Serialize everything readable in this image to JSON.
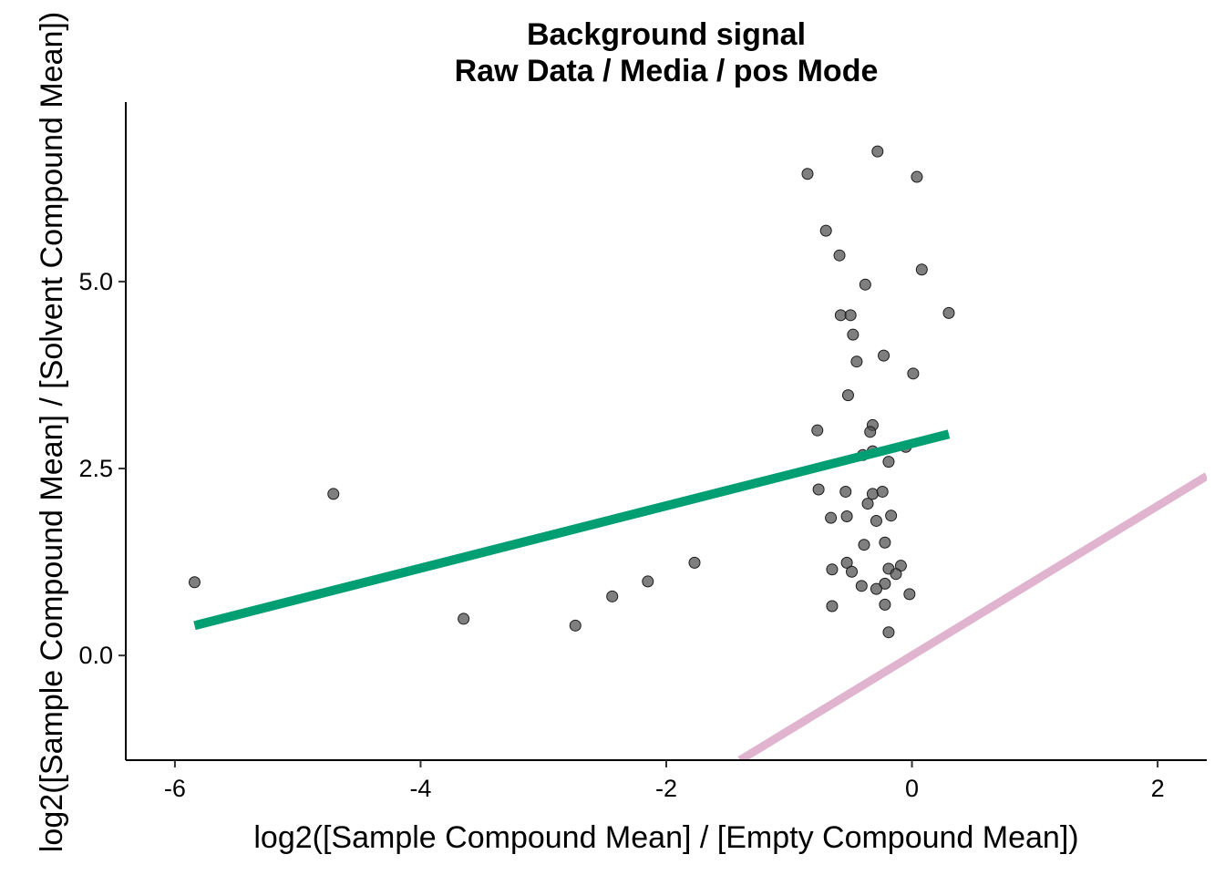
{
  "chart_data": {
    "type": "scatter",
    "title": "Background signal",
    "subtitle": "Raw Data / Media / pos Mode",
    "xlabel": "log2([Sample Compound Mean] / [Empty Compound Mean])",
    "ylabel": "log2([Sample Compound Mean] / [Solvent Compound Mean])",
    "xlim": [
      -6.4,
      2.4
    ],
    "ylim": [
      -1.4,
      7.4
    ],
    "x_ticks": [
      -6,
      -4,
      -2,
      0,
      2
    ],
    "x_tick_labels": [
      "-6",
      "-4",
      "-2",
      "0",
      "2"
    ],
    "y_ticks": [
      0,
      2.5,
      5
    ],
    "y_tick_labels": [
      "0.0",
      "2.5",
      "5.0"
    ],
    "grid": false,
    "colors": {
      "points": "#4d4d4d",
      "fit_line": "#009E73",
      "identity_line": "#E0B4CF"
    },
    "points": [
      {
        "x": -5.84,
        "y": 0.98
      },
      {
        "x": -4.71,
        "y": 2.16
      },
      {
        "x": -3.65,
        "y": 0.49
      },
      {
        "x": -2.74,
        "y": 0.4
      },
      {
        "x": -2.44,
        "y": 0.79
      },
      {
        "x": -2.15,
        "y": 0.99
      },
      {
        "x": -1.77,
        "y": 1.24
      },
      {
        "x": -0.85,
        "y": 6.44
      },
      {
        "x": -0.28,
        "y": 6.74
      },
      {
        "x": 0.04,
        "y": 6.4
      },
      {
        "x": -0.7,
        "y": 5.68
      },
      {
        "x": -0.59,
        "y": 5.35
      },
      {
        "x": 0.08,
        "y": 5.16
      },
      {
        "x": -0.38,
        "y": 4.96
      },
      {
        "x": -0.58,
        "y": 4.55
      },
      {
        "x": -0.5,
        "y": 4.55
      },
      {
        "x": 0.3,
        "y": 4.58
      },
      {
        "x": -0.48,
        "y": 4.29
      },
      {
        "x": -0.23,
        "y": 4.01
      },
      {
        "x": -0.45,
        "y": 3.93
      },
      {
        "x": 0.01,
        "y": 3.77
      },
      {
        "x": -0.52,
        "y": 3.48
      },
      {
        "x": -0.77,
        "y": 3.01
      },
      {
        "x": -0.32,
        "y": 3.08
      },
      {
        "x": -0.34,
        "y": 2.99
      },
      {
        "x": -0.32,
        "y": 2.73
      },
      {
        "x": -0.4,
        "y": 2.68
      },
      {
        "x": -0.05,
        "y": 2.79
      },
      {
        "x": -0.19,
        "y": 2.59
      },
      {
        "x": -0.76,
        "y": 2.22
      },
      {
        "x": -0.54,
        "y": 2.19
      },
      {
        "x": -0.32,
        "y": 2.16
      },
      {
        "x": -0.24,
        "y": 2.19
      },
      {
        "x": -0.36,
        "y": 2.03
      },
      {
        "x": -0.66,
        "y": 1.84
      },
      {
        "x": -0.53,
        "y": 1.86
      },
      {
        "x": -0.29,
        "y": 1.8
      },
      {
        "x": -0.17,
        "y": 1.87
      },
      {
        "x": -0.39,
        "y": 1.48
      },
      {
        "x": -0.22,
        "y": 1.51
      },
      {
        "x": -0.53,
        "y": 1.24
      },
      {
        "x": -0.65,
        "y": 1.15
      },
      {
        "x": -0.49,
        "y": 1.12
      },
      {
        "x": -0.19,
        "y": 1.16
      },
      {
        "x": -0.09,
        "y": 1.2
      },
      {
        "x": -0.13,
        "y": 1.09
      },
      {
        "x": -0.22,
        "y": 0.96
      },
      {
        "x": -0.41,
        "y": 0.93
      },
      {
        "x": -0.29,
        "y": 0.89
      },
      {
        "x": -0.02,
        "y": 0.82
      },
      {
        "x": -0.65,
        "y": 0.66
      },
      {
        "x": -0.22,
        "y": 0.68
      },
      {
        "x": -0.19,
        "y": 0.31
      }
    ],
    "fit_line": {
      "x": [
        -5.84,
        0.3
      ],
      "y": [
        0.4,
        2.96
      ]
    },
    "identity_line": {
      "x": [
        -1.4,
        2.4
      ],
      "y": [
        -1.4,
        2.4
      ]
    }
  }
}
